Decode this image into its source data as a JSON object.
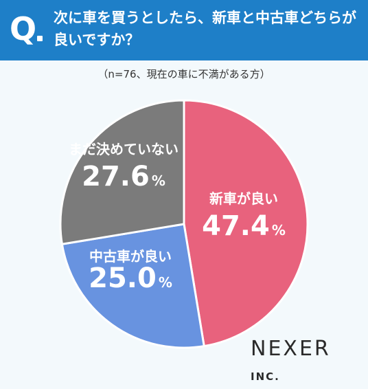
{
  "header": {
    "q_mark": "Q",
    "question_line1": "次に車を買うとしたら、新車と中古車どちらが",
    "question_line2": "良いですか？",
    "background": "#1e7fc8"
  },
  "note": "（n=76、現在の車に不満がある方）",
  "brand": {
    "name": "NEXER",
    "suffix": "INC."
  },
  "chart_data": {
    "type": "pie",
    "start": "12 o'clock, clockwise",
    "slices": [
      {
        "label": "新車が良い",
        "value": 47.4,
        "value_text": "47.4",
        "unit": "%",
        "color": "#e8627d"
      },
      {
        "label": "中古車が良い",
        "value": 25.0,
        "value_text": "25.0",
        "unit": "%",
        "color": "#6893e0"
      },
      {
        "label": "まだ決めていない",
        "value": 27.6,
        "value_text": "27.6",
        "unit": "%",
        "color": "#7b7b7b"
      }
    ]
  }
}
